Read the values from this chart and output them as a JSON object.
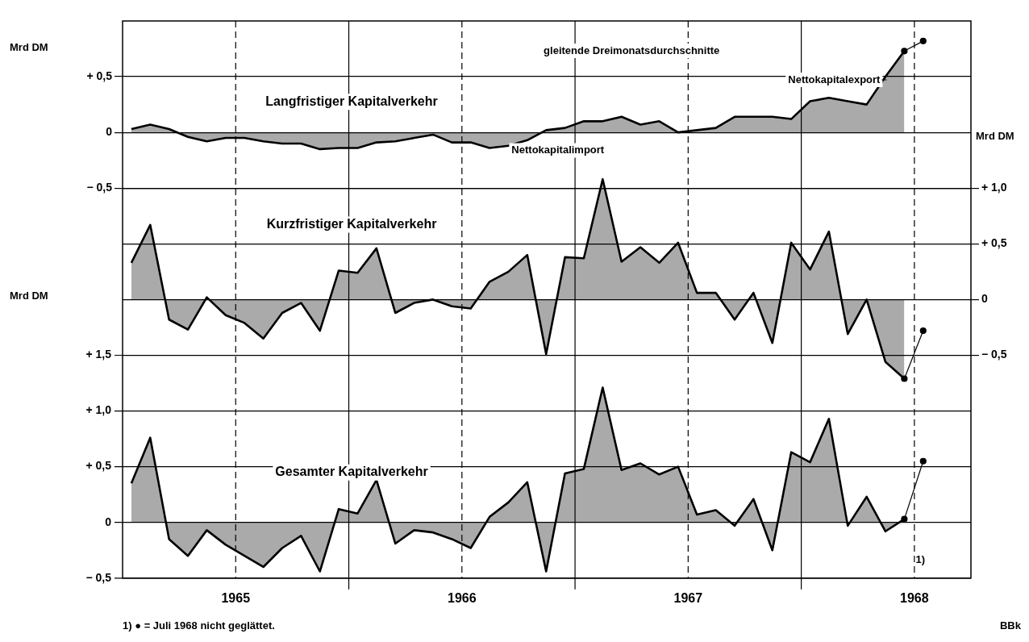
{
  "chart_data": {
    "type": "area",
    "subtitle": "gleitende Dreimonatsdurchschnitte",
    "ylabel": "Mrd DM",
    "y2label": "Mrd DM",
    "y3label": "Mrd DM",
    "x": [
      "1965-01-15",
      "1965-02-15",
      "1965-03-15",
      "1965-04-15",
      "1965-05-15",
      "1965-06-15",
      "1965-07-15",
      "1965-08-15",
      "1965-09-15",
      "1965-10-15",
      "1965-11-15",
      "1965-12-15",
      "1966-01-15",
      "1966-02-15",
      "1966-03-15",
      "1966-04-15",
      "1966-05-15",
      "1966-06-15",
      "1966-07-15",
      "1966-08-15",
      "1966-09-15",
      "1966-10-15",
      "1966-11-15",
      "1966-12-15",
      "1967-01-15",
      "1967-02-15",
      "1967-03-15",
      "1967-04-15",
      "1967-05-15",
      "1967-06-15",
      "1967-07-15",
      "1967-08-15",
      "1967-09-15",
      "1967-10-15",
      "1967-11-15",
      "1967-12-15",
      "1968-01-15",
      "1968-02-15",
      "1968-03-15",
      "1968-04-15",
      "1968-05-15",
      "1968-06-15"
    ],
    "series": [
      {
        "name": "Langfristiger Kapitalverkehr",
        "axis": "y",
        "color": "#000000",
        "values": [
          0.03,
          0.07,
          0.03,
          -0.04,
          -0.08,
          -0.05,
          -0.05,
          -0.08,
          -0.1,
          -0.1,
          -0.15,
          -0.14,
          -0.14,
          -0.09,
          -0.08,
          -0.05,
          -0.02,
          -0.09,
          -0.09,
          -0.14,
          -0.12,
          -0.07,
          0.02,
          0.04,
          0.1,
          0.1,
          0.14,
          0.07,
          0.1,
          0.0,
          0.02,
          0.04,
          0.14,
          0.14,
          0.14,
          0.12,
          0.28,
          0.31,
          0.28,
          0.25,
          0.5,
          0.73
        ]
      },
      {
        "name": "Kurzfristiger Kapitalverkehr",
        "axis": "y2",
        "color": "#000000",
        "values": [
          0.33,
          0.67,
          -0.18,
          -0.27,
          0.02,
          -0.14,
          -0.21,
          -0.35,
          -0.12,
          -0.03,
          -0.28,
          0.26,
          0.24,
          0.46,
          -0.12,
          -0.03,
          0.0,
          -0.06,
          -0.08,
          0.16,
          0.25,
          0.4,
          -0.49,
          0.38,
          0.37,
          1.08,
          0.34,
          0.47,
          0.33,
          0.51,
          0.06,
          0.06,
          -0.18,
          0.06,
          -0.39,
          0.51,
          0.27,
          0.61,
          -0.31,
          0.0,
          -0.56,
          -0.71
        ]
      },
      {
        "name": "Gesamter Kapitalverkehr",
        "axis": "y3",
        "color": "#000000",
        "values": [
          0.35,
          0.76,
          -0.15,
          -0.3,
          -0.07,
          -0.2,
          -0.3,
          -0.4,
          -0.23,
          -0.12,
          -0.44,
          0.12,
          0.08,
          0.38,
          -0.19,
          -0.07,
          -0.09,
          -0.15,
          -0.23,
          0.05,
          0.18,
          0.36,
          -0.44,
          0.44,
          0.48,
          1.21,
          0.47,
          0.53,
          0.43,
          0.5,
          0.07,
          0.11,
          -0.03,
          0.21,
          -0.25,
          0.63,
          0.54,
          0.93,
          -0.03,
          0.23,
          -0.08,
          0.03
        ]
      },
      {
        "type": "line",
        "axis": "y",
        "color": "#000000",
        "marker": "circle",
        "x": [
          "1968-06-15",
          "1968-07-15"
        ],
        "values": [
          0.73,
          0.82
        ]
      },
      {
        "type": "line",
        "axis": "y2",
        "color": "#000000",
        "marker": "circle",
        "x": [
          "1968-06-15",
          "1968-07-15"
        ],
        "values": [
          -0.71,
          -0.28
        ]
      },
      {
        "type": "line",
        "axis": "y3",
        "color": "#000000",
        "marker": "circle",
        "x": [
          "1968-06-15",
          "1968-07-15"
        ],
        "values": [
          0.03,
          0.55
        ]
      }
    ],
    "xlim": [
      "1965-01-01",
      "1968-10-01"
    ],
    "xticks": [
      {
        "value": "1965-07-01",
        "label": "1965"
      },
      {
        "value": "1966-01-01",
        "label": null
      },
      {
        "value": "1966-07-01",
        "label": "1966"
      },
      {
        "value": "1967-01-01",
        "label": null
      },
      {
        "value": "1967-07-01",
        "label": "1967"
      },
      {
        "value": "1968-01-01",
        "label": null
      },
      {
        "value": "1968-07-01",
        "label": "1968"
      }
    ],
    "ylim": [
      -4,
      1
    ],
    "yticks": [
      {
        "value": 0.5,
        "label": "+ 0,5"
      },
      0,
      {
        "value": -0.5,
        "label": "− 0,5"
      }
    ],
    "y2lim": [
      -2.5,
      2.5
    ],
    "y2ticks": [
      {
        "value": 1,
        "label": "+ 1,0"
      },
      {
        "value": 0.5,
        "label": "+ 0,5"
      },
      0,
      {
        "value": -0.5,
        "label": "− 0,5"
      }
    ],
    "y3lim": [
      -0.5,
      4.5
    ],
    "y3ticks": [
      {
        "value": 1.5,
        "label": "+ 1,5"
      },
      {
        "value": 1,
        "label": "+ 1,0"
      },
      {
        "value": 0.5,
        "label": "+ 0,5"
      },
      0,
      {
        "value": -0.5,
        "label": "− 0,5"
      }
    ],
    "grid": true,
    "legend": false,
    "annotations": [
      "Nettokapitalexport",
      {
        "text": "Nettokapitalimport",
        "x": "1966-09-20",
        "y": -0.09
      },
      "1)",
      "1) ● = Juli 1968 nicht geglättet.",
      "BBk"
    ]
  }
}
